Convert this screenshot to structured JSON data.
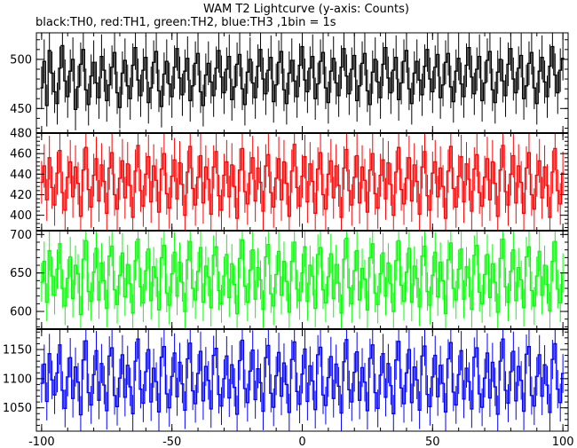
{
  "title": "WAM T2 Lightcurve (y-axis: Counts)",
  "subtitle": "black:TH0, red:TH1, green:TH2, blue:TH3 ,1bin = 1s",
  "chart_data": [
    {
      "type": "line",
      "series_label": "TH0",
      "color": "#000000",
      "xlim": [
        -102,
        102
      ],
      "ylim": [
        425,
        527
      ],
      "yticks": [
        450,
        500
      ],
      "grid": false,
      "y": [
        471,
        498,
        453,
        509,
        486,
        467,
        455,
        491,
        514,
        478,
        462,
        488,
        500,
        449,
        472,
        495,
        510,
        469,
        454,
        483,
        497,
        476,
        461,
        503,
        489,
        458,
        474,
        492,
        507,
        466,
        451,
        486,
        499,
        473,
        460,
        494,
        512,
        479,
        463,
        489,
        502,
        456,
        471,
        497,
        508,
        468,
        452,
        485,
        498,
        475,
        462,
        492,
        511,
        481,
        464,
        488,
        501,
        458,
        473,
        496,
        506,
        467,
        453,
        484,
        496,
        477,
        463,
        491,
        509,
        482,
        466,
        490,
        503,
        459,
        472,
        495,
        505,
        470,
        454,
        487,
        500,
        476,
        461,
        493,
        510,
        480,
        465,
        489,
        502,
        457,
        474,
        497,
        508,
        469,
        455,
        486,
        499,
        478,
        462,
        494,
        513,
        479,
        467,
        491,
        503,
        460,
        475,
        498,
        507,
        471,
        456,
        488,
        501,
        476,
        463,
        492,
        511,
        483,
        465,
        490,
        504,
        458,
        473,
        496,
        506,
        468,
        454,
        487,
        500,
        477,
        461,
        495,
        512,
        481,
        466,
        489,
        502,
        459,
        476,
        498,
        509,
        470,
        455,
        486,
        498,
        479,
        464,
        493,
        510,
        480,
        467,
        492,
        505,
        461,
        474,
        497,
        506,
        472,
        457,
        488,
        501,
        475,
        462,
        494,
        512,
        482,
        465,
        490,
        503,
        458,
        476,
        499,
        508,
        469,
        456,
        487,
        500,
        478,
        463,
        495,
        511,
        480,
        466,
        491,
        504,
        460,
        473,
        496,
        507,
        471,
        455,
        488,
        502,
        477,
        462,
        493,
        513,
        484,
        466,
        489,
        501
      ]
    },
    {
      "type": "line",
      "series_label": "TH1",
      "color": "#ff0000",
      "xlim": [
        -102,
        102
      ],
      "ylim": [
        385,
        480
      ],
      "yticks": [
        400,
        420,
        440,
        460,
        480
      ],
      "grid": false,
      "y": [
        432,
        448,
        415,
        456,
        427,
        410,
        441,
        463,
        422,
        405,
        437,
        452,
        418,
        447,
        431,
        399,
        444,
        466,
        425,
        408,
        439,
        455,
        414,
        449,
        433,
        402,
        446,
        461,
        420,
        406,
        436,
        453,
        417,
        450,
        429,
        398,
        443,
        468,
        424,
        409,
        440,
        457,
        413,
        448,
        434,
        403,
        445,
        460,
        421,
        407,
        438,
        454,
        416,
        451,
        430,
        400,
        442,
        467,
        426,
        410,
        437,
        458,
        412,
        447,
        435,
        401,
        447,
        462,
        419,
        405,
        439,
        452,
        418,
        449,
        428,
        397,
        444,
        465,
        423,
        411,
        441,
        456,
        414,
        446,
        432,
        404,
        448,
        459,
        422,
        408,
        436,
        455,
        415,
        452,
        431,
        399,
        443,
        469,
        427,
        409,
        438,
        457,
        413,
        450,
        433,
        402,
        445,
        461,
        420,
        406,
        440,
        453,
        417,
        448,
        429,
        398,
        446,
        464,
        424,
        410,
        437,
        458,
        412,
        447,
        434,
        403,
        444,
        460,
        421,
        407,
        439,
        454,
        416,
        451,
        430,
        400,
        442,
        466,
        425,
        411,
        436,
        456,
        414,
        449,
        433,
        401,
        447,
        462,
        419,
        405,
        441,
        452,
        418,
        446,
        428,
        397,
        443,
        467,
        426,
        408,
        438,
        457,
        413,
        450,
        435,
        404,
        445,
        459,
        422,
        409,
        437,
        455,
        415,
        452,
        431,
        399,
        444,
        468,
        423,
        410,
        440,
        458,
        412,
        448,
        432,
        402,
        446,
        461,
        420,
        406,
        439,
        453,
        417,
        447,
        429,
        398,
        442,
        465,
        424,
        411,
        441
      ]
    },
    {
      "type": "line",
      "series_label": "TH2",
      "color": "#00ff00",
      "xlim": [
        -102,
        102
      ],
      "ylim": [
        577,
        705
      ],
      "yticks": [
        600,
        650,
        700
      ],
      "grid": false,
      "y": [
        638,
        665,
        612,
        679,
        646,
        621,
        655,
        688,
        630,
        607,
        643,
        671,
        617,
        660,
        649,
        596,
        668,
        692,
        626,
        613,
        651,
        682,
        615,
        663,
        640,
        604,
        672,
        685,
        628,
        609,
        647,
        676,
        619,
        661,
        636,
        598,
        666,
        694,
        632,
        611,
        653,
        681,
        614,
        658,
        644,
        602,
        670,
        686,
        624,
        608,
        649,
        677,
        620,
        664,
        638,
        600,
        667,
        691,
        630,
        615,
        652,
        683,
        612,
        659,
        645,
        605,
        673,
        684,
        627,
        610,
        646,
        674,
        618,
        662,
        635,
        597,
        669,
        693,
        633,
        612,
        654,
        680,
        616,
        657,
        641,
        603,
        671,
        687,
        623,
        607,
        648,
        678,
        621,
        665,
        639,
        599,
        665,
        690,
        629,
        614,
        650,
        684,
        613,
        660,
        646,
        604,
        674,
        683,
        628,
        611,
        645,
        675,
        617,
        661,
        637,
        598,
        668,
        695,
        631,
        610,
        653,
        679,
        615,
        656,
        642,
        602,
        670,
        688,
        624,
        609,
        649,
        676,
        620,
        663,
        636,
        600,
        666,
        692,
        634,
        613,
        651,
        682,
        612,
        659,
        643,
        606,
        672,
        685,
        626,
        608,
        647,
        677,
        619,
        664,
        640,
        597,
        667,
        689,
        630,
        615,
        655,
        681,
        616,
        658,
        644,
        603,
        673,
        686,
        625,
        610,
        648,
        674,
        618,
        662,
        638,
        599,
        669,
        694,
        632,
        612,
        652,
        680,
        614,
        657,
        641,
        605,
        671,
        684,
        627,
        607,
        646,
        678,
        621,
        660,
        635,
        601,
        665,
        691,
        629,
        611,
        650
      ]
    },
    {
      "type": "line",
      "series_label": "TH3",
      "color": "#0000ff",
      "xlim": [
        -102,
        102
      ],
      "ylim": [
        1010,
        1185
      ],
      "yticks": [
        1050,
        1100,
        1150
      ],
      "grid": false,
      "y": [
        1092,
        1125,
        1061,
        1143,
        1098,
        1072,
        1110,
        1158,
        1080,
        1049,
        1103,
        1136,
        1066,
        1120,
        1094,
        1038,
        1132,
        1165,
        1076,
        1055,
        1107,
        1148,
        1063,
        1126,
        1089,
        1045,
        1139,
        1153,
        1071,
        1052,
        1101,
        1141,
        1068,
        1123,
        1086,
        1040,
        1130,
        1168,
        1082,
        1058,
        1112,
        1150,
        1060,
        1118,
        1095,
        1043,
        1137,
        1155,
        1074,
        1050,
        1104,
        1144,
        1069,
        1128,
        1091,
        1046,
        1134,
        1161,
        1079,
        1057,
        1109,
        1147,
        1062,
        1121,
        1097,
        1048,
        1140,
        1152,
        1073,
        1053,
        1100,
        1139,
        1067,
        1124,
        1085,
        1039,
        1131,
        1166,
        1083,
        1059,
        1113,
        1149,
        1064,
        1117,
        1093,
        1044,
        1136,
        1157,
        1075,
        1051,
        1105,
        1145,
        1070,
        1127,
        1090,
        1042,
        1133,
        1163,
        1078,
        1056,
        1108,
        1151,
        1061,
        1122,
        1096,
        1047,
        1141,
        1154,
        1072,
        1054,
        1102,
        1138,
        1066,
        1125,
        1087,
        1041,
        1129,
        1167,
        1081,
        1060,
        1111,
        1146,
        1063,
        1119,
        1094,
        1045,
        1135,
        1158,
        1076,
        1049,
        1106,
        1143,
        1068,
        1126,
        1088,
        1040,
        1132,
        1164,
        1084,
        1057,
        1110,
        1150,
        1059,
        1120,
        1098,
        1046,
        1139,
        1156,
        1073,
        1052,
        1103,
        1140,
        1069,
        1123,
        1092,
        1043,
        1134,
        1162,
        1077,
        1055,
        1107,
        1148,
        1065,
        1118,
        1095,
        1048,
        1137,
        1153,
        1074,
        1051,
        1101,
        1144,
        1067,
        1128,
        1086,
        1039,
        1130,
        1168,
        1080,
        1058,
        1112,
        1147,
        1062,
        1121,
        1097,
        1044,
        1142,
        1155,
        1071,
        1053,
        1104,
        1141,
        1070,
        1124,
        1089,
        1042,
        1133,
        1160,
        1082,
        1059,
        1109
      ]
    }
  ],
  "x_axis": {
    "xlim": [
      -102,
      102
    ],
    "xticks": [
      -100,
      -50,
      0,
      50,
      100
    ],
    "tick_labels": [
      "-100",
      "-50",
      "0",
      "50",
      "100"
    ]
  }
}
